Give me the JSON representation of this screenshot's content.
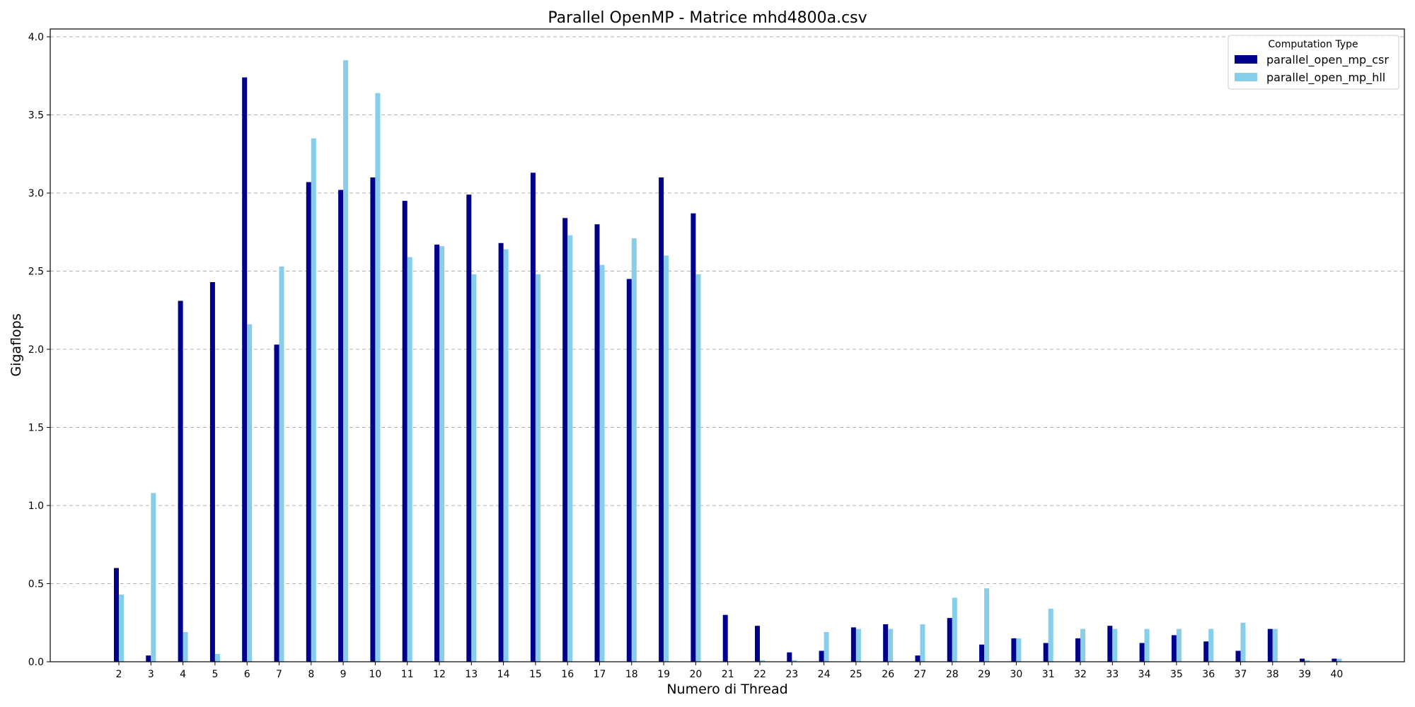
{
  "chart_data": {
    "type": "bar",
    "title": "Parallel OpenMP - Matrice mhd4800a.csv",
    "xlabel": "Numero di Thread",
    "ylabel": "Gigaflops",
    "ylim": [
      0,
      4.05
    ],
    "yticks": [
      "0.0",
      "0.5",
      "1.0",
      "1.5",
      "2.0",
      "2.5",
      "3.0",
      "3.5",
      "4.0"
    ],
    "grid": "y-dashed",
    "legend": {
      "title": "Computation Type",
      "placement": "top-right"
    },
    "categories": [
      "2",
      "3",
      "4",
      "5",
      "6",
      "7",
      "8",
      "9",
      "10",
      "11",
      "12",
      "13",
      "14",
      "15",
      "16",
      "17",
      "18",
      "19",
      "20",
      "21",
      "22",
      "23",
      "24",
      "25",
      "26",
      "27",
      "28",
      "29",
      "30",
      "31",
      "32",
      "33",
      "34",
      "35",
      "36",
      "37",
      "38",
      "39",
      "40"
    ],
    "series": [
      {
        "name": "parallel_open_mp_csr",
        "color": "#00008b",
        "values": [
          0.6,
          0.04,
          2.31,
          2.43,
          3.74,
          2.03,
          3.07,
          3.02,
          3.1,
          2.95,
          2.67,
          2.99,
          2.68,
          3.13,
          2.84,
          2.8,
          2.45,
          3.1,
          2.87,
          0.3,
          0.23,
          0.06,
          0.07,
          0.22,
          0.24,
          0.04,
          0.28,
          0.11,
          0.15,
          0.12,
          0.15,
          0.23,
          0.12,
          0.17,
          0.13,
          0.07,
          0.21,
          0.02,
          0.02
        ]
      },
      {
        "name": "parallel_open_mp_hll",
        "color": "#87ceeb",
        "values": [
          0.43,
          1.08,
          0.19,
          0.05,
          2.16,
          2.53,
          3.35,
          3.85,
          3.64,
          2.59,
          2.66,
          2.48,
          2.64,
          2.48,
          2.73,
          2.54,
          2.71,
          2.6,
          2.48,
          0.0,
          0.01,
          0.01,
          0.19,
          0.21,
          0.21,
          0.24,
          0.41,
          0.47,
          0.15,
          0.34,
          0.21,
          0.21,
          0.21,
          0.21,
          0.21,
          0.25,
          0.21,
          0.01,
          0.02
        ]
      }
    ]
  }
}
